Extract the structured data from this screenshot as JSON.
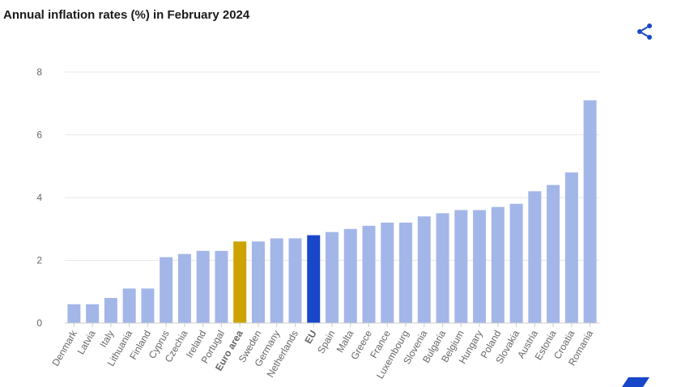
{
  "title": "Annual inflation rates (%) in February 2024",
  "icons": {
    "share": "share-icon",
    "corner": "logo-mark"
  },
  "colors": {
    "default_bar": "#a3b6e8",
    "euro_area_bar": "#cca300",
    "eu_bar": "#1847c9",
    "share_icon": "#1847c9"
  },
  "chart_data": {
    "type": "bar",
    "title": "Annual inflation rates (%) in February 2024",
    "xlabel": "",
    "ylabel": "",
    "ylim": [
      0,
      8
    ],
    "yticks": [
      0,
      2,
      4,
      6,
      8
    ],
    "grid": true,
    "categories": [
      "Denmark",
      "Latvia",
      "Italy",
      "Lithuania",
      "Finland",
      "Cyprus",
      "Czechia",
      "Ireland",
      "Portugal",
      "Euro area",
      "Sweden",
      "Germany",
      "Netherlands",
      "EU",
      "Spain",
      "Malta",
      "Greece",
      "France",
      "Luxembourg",
      "Slovenia",
      "Bulgaria",
      "Belgium",
      "Hungary",
      "Poland",
      "Slovakia",
      "Austria",
      "Estonia",
      "Croatia",
      "Romania"
    ],
    "values": [
      0.6,
      0.6,
      0.8,
      1.1,
      1.1,
      2.1,
      2.2,
      2.3,
      2.3,
      2.6,
      2.6,
      2.7,
      2.7,
      2.8,
      2.9,
      3.0,
      3.1,
      3.2,
      3.2,
      3.4,
      3.5,
      3.6,
      3.6,
      3.7,
      3.8,
      4.2,
      4.4,
      4.8,
      7.1
    ],
    "highlight": {
      "Euro area": "euro_area_bar",
      "EU": "eu_bar"
    },
    "bold_categories": [
      "Euro area",
      "EU"
    ]
  }
}
